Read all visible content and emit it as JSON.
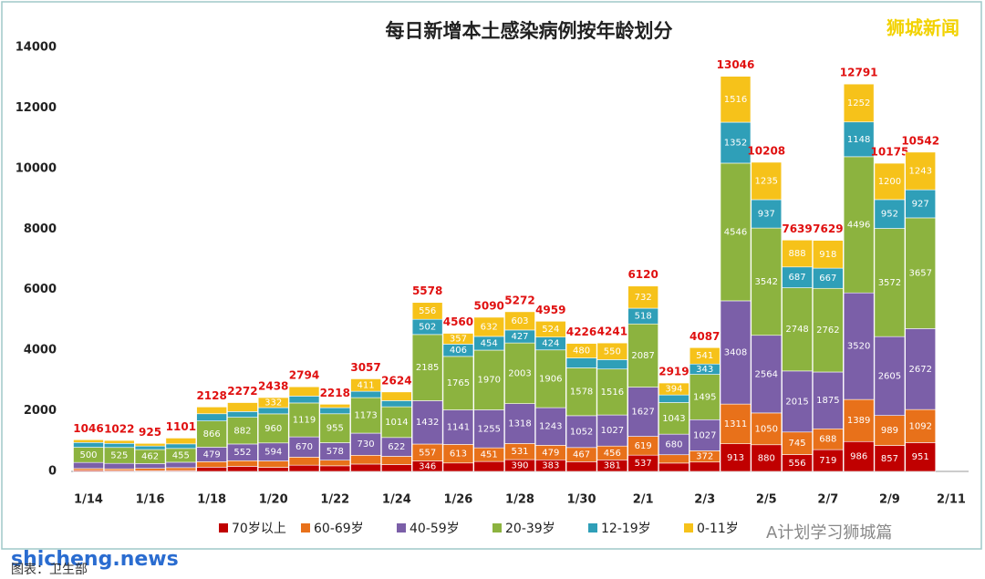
{
  "chart_data": {
    "type": "stacked_bar",
    "title": "每日新增本土感染病例按年龄划分",
    "categories": [
      "1/14",
      null,
      "1/16",
      null,
      "1/18",
      null,
      "1/20",
      null,
      "1/22",
      null,
      "1/24",
      null,
      "1/26",
      null,
      "1/28",
      null,
      "1/30",
      null,
      "2/1",
      null,
      "2/3",
      null,
      "2/5",
      null,
      "2/7",
      null,
      "2/9",
      null,
      "2/11"
    ],
    "series": [
      {
        "name": "70岁以上",
        "color": "#c00000",
        "values": [
          35,
          30,
          25,
          30,
          141,
          168,
          134,
          206,
          185,
          242,
          227,
          346,
          278,
          328,
          390,
          383,
          321,
          381,
          537,
          275,
          309,
          913,
          880,
          556,
          719,
          986,
          857,
          951,
          null
        ]
      },
      {
        "name": "60-69岁",
        "color": "#e8711a",
        "values": [
          61,
          55,
          75,
          93,
          180,
          185,
          212,
          265,
          185,
          291,
          271,
          557,
          613,
          451,
          531,
          479,
          467,
          456,
          619,
          275,
          372,
          1311,
          1050,
          745,
          688,
          1389,
          989,
          1092,
          null
        ]
      },
      {
        "name": "40-59岁",
        "color": "#7b5fa8",
        "values": [
          200,
          180,
          160,
          180,
          479,
          552,
          594,
          670,
          578,
          730,
          622,
          1432,
          1141,
          1255,
          1318,
          1243,
          1052,
          1027,
          1627,
          680,
          1027,
          3408,
          2564,
          2015,
          1875,
          3520,
          2605,
          2672,
          null
        ]
      },
      {
        "name": "20-39岁",
        "color": "#8cb33f",
        "values": [
          500,
          525,
          462,
          455,
          866,
          882,
          960,
          1119,
          955,
          1173,
          1014,
          2185,
          1765,
          1970,
          2003,
          1906,
          1578,
          1516,
          2087,
          1043,
          1495,
          4546,
          3542,
          2748,
          2762,
          4496,
          3572,
          3657,
          null
        ]
      },
      {
        "name": "12-19岁",
        "color": "#2f9fb8",
        "values": [
          159,
          135,
          116,
          150,
          238,
          189,
          206,
          228,
          201,
          210,
          202,
          502,
          406,
          454,
          427,
          424,
          328,
          311,
          518,
          252,
          343,
          1352,
          937,
          687,
          667,
          1148,
          952,
          927,
          null
        ]
      },
      {
        "name": "0-11岁",
        "color": "#f6c21a",
        "values": [
          91,
          97,
          87,
          193,
          224,
          296,
          332,
          306,
          114,
          411,
          288,
          556,
          357,
          632,
          603,
          524,
          480,
          550,
          732,
          394,
          541,
          1516,
          1235,
          888,
          918,
          1252,
          1200,
          1243,
          null
        ]
      }
    ],
    "totals": [
      1046,
      1022,
      925,
      1101,
      2128,
      2272,
      2438,
      2794,
      2218,
      3057,
      2624,
      5578,
      4560,
      5090,
      5272,
      4959,
      4226,
      4241,
      6120,
      2919,
      4087,
      13046,
      10208,
      7639,
      7629,
      12791,
      10175,
      10542,
      null
    ],
    "ylim": [
      0,
      14000
    ],
    "yticks": [
      0,
      2000,
      4000,
      6000,
      8000,
      10000,
      12000,
      14000
    ],
    "grid": false
  },
  "watermarks": {
    "brand": "狮城新闻",
    "site": "shicheng.news",
    "account": "A计划学习狮城篇",
    "source": "图表：卫生部"
  }
}
